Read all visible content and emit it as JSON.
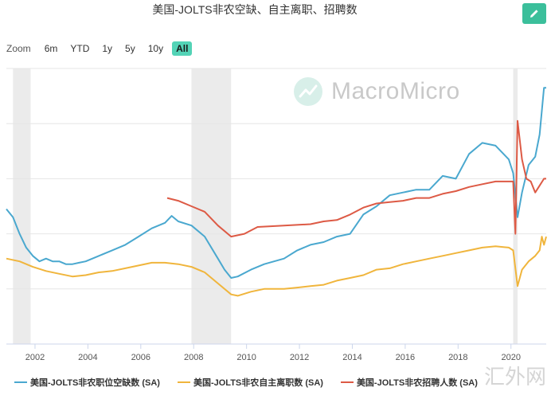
{
  "title": "美国-JOLTS非农空缺、自主离职、招聘数",
  "toolbar": {
    "zoom_label": "Zoom",
    "ranges": [
      "6m",
      "YTD",
      "1y",
      "5y",
      "10y",
      "All"
    ],
    "active": "All"
  },
  "watermark": {
    "brand": "MacroMicro",
    "icon": "chart-trend-icon",
    "corner": "汇外网"
  },
  "colors": {
    "openings": "#4aa8cf",
    "quits": "#f0b53c",
    "hires": "#dd5a45",
    "recession": "#ebebeb",
    "accent": "#3bbf9b"
  },
  "chart_data": {
    "type": "line",
    "title": "美国-JOLTS非农空缺、自主离职、招聘数",
    "x_axis": {
      "type": "datetime",
      "ticks": [
        "2002",
        "2004",
        "2006",
        "2008",
        "2010",
        "2012",
        "2014",
        "2016",
        "2018",
        "2020"
      ],
      "range": [
        "2000-12",
        "2021-05"
      ]
    },
    "y_axis": {
      "labels": "hidden",
      "grid": true
    },
    "recession_bands": [
      [
        "2001-03",
        "2001-11"
      ],
      [
        "2007-12",
        "2009-06"
      ],
      [
        "2020-02",
        "2020-04"
      ]
    ],
    "legend": "bottom",
    "series": [
      {
        "name": "美国-JOLTS非农职位空缺数 (SA)",
        "color": "#4aa8cf",
        "points": [
          [
            "2000-12",
            4.9
          ],
          [
            "2001-03",
            4.6
          ],
          [
            "2001-06",
            4.0
          ],
          [
            "2001-09",
            3.5
          ],
          [
            "2001-12",
            3.2
          ],
          [
            "2002-03",
            3.0
          ],
          [
            "2002-06",
            3.1
          ],
          [
            "2002-09",
            3.0
          ],
          [
            "2002-12",
            3.0
          ],
          [
            "2003-03",
            2.9
          ],
          [
            "2003-06",
            2.9
          ],
          [
            "2003-09",
            2.95
          ],
          [
            "2003-12",
            3.0
          ],
          [
            "2004-06",
            3.2
          ],
          [
            "2004-12",
            3.4
          ],
          [
            "2005-06",
            3.6
          ],
          [
            "2005-12",
            3.9
          ],
          [
            "2006-06",
            4.2
          ],
          [
            "2006-12",
            4.4
          ],
          [
            "2007-03",
            4.65
          ],
          [
            "2007-06",
            4.45
          ],
          [
            "2007-12",
            4.3
          ],
          [
            "2008-06",
            3.9
          ],
          [
            "2008-12",
            3.1
          ],
          [
            "2009-03",
            2.7
          ],
          [
            "2009-06",
            2.4
          ],
          [
            "2009-09",
            2.45
          ],
          [
            "2010-03",
            2.7
          ],
          [
            "2010-09",
            2.9
          ],
          [
            "2011-06",
            3.1
          ],
          [
            "2011-12",
            3.4
          ],
          [
            "2012-06",
            3.6
          ],
          [
            "2012-12",
            3.7
          ],
          [
            "2013-06",
            3.9
          ],
          [
            "2013-12",
            4.0
          ],
          [
            "2014-06",
            4.7
          ],
          [
            "2014-12",
            5.0
          ],
          [
            "2015-06",
            5.4
          ],
          [
            "2015-12",
            5.5
          ],
          [
            "2016-06",
            5.6
          ],
          [
            "2016-12",
            5.6
          ],
          [
            "2017-06",
            6.1
          ],
          [
            "2017-12",
            6.0
          ],
          [
            "2018-06",
            6.9
          ],
          [
            "2018-12",
            7.3
          ],
          [
            "2019-06",
            7.2
          ],
          [
            "2019-12",
            6.7
          ],
          [
            "2020-02",
            6.2
          ],
          [
            "2020-03",
            5.4
          ],
          [
            "2020-04",
            4.6
          ],
          [
            "2020-06",
            5.5
          ],
          [
            "2020-09",
            6.5
          ],
          [
            "2020-12",
            6.8
          ],
          [
            "2021-02",
            7.6
          ],
          [
            "2021-04",
            9.3
          ],
          [
            "2021-05",
            9.3
          ]
        ]
      },
      {
        "name": "美国-JOLTS非农自主离职数 (SA)",
        "color": "#f0b53c",
        "points": [
          [
            "2000-12",
            3.1
          ],
          [
            "2001-06",
            3.0
          ],
          [
            "2001-12",
            2.8
          ],
          [
            "2002-06",
            2.65
          ],
          [
            "2002-12",
            2.55
          ],
          [
            "2003-06",
            2.45
          ],
          [
            "2003-12",
            2.5
          ],
          [
            "2004-06",
            2.6
          ],
          [
            "2004-12",
            2.65
          ],
          [
            "2005-06",
            2.75
          ],
          [
            "2005-12",
            2.85
          ],
          [
            "2006-06",
            2.95
          ],
          [
            "2006-12",
            2.95
          ],
          [
            "2007-06",
            2.9
          ],
          [
            "2007-12",
            2.8
          ],
          [
            "2008-06",
            2.6
          ],
          [
            "2008-12",
            2.2
          ],
          [
            "2009-06",
            1.8
          ],
          [
            "2009-09",
            1.75
          ],
          [
            "2010-03",
            1.9
          ],
          [
            "2010-09",
            2.0
          ],
          [
            "2011-06",
            2.0
          ],
          [
            "2011-12",
            2.05
          ],
          [
            "2012-06",
            2.1
          ],
          [
            "2012-12",
            2.15
          ],
          [
            "2013-06",
            2.3
          ],
          [
            "2013-12",
            2.4
          ],
          [
            "2014-06",
            2.5
          ],
          [
            "2014-12",
            2.7
          ],
          [
            "2015-06",
            2.75
          ],
          [
            "2015-12",
            2.9
          ],
          [
            "2016-06",
            3.0
          ],
          [
            "2016-12",
            3.1
          ],
          [
            "2017-06",
            3.2
          ],
          [
            "2017-12",
            3.3
          ],
          [
            "2018-06",
            3.4
          ],
          [
            "2018-12",
            3.5
          ],
          [
            "2019-06",
            3.55
          ],
          [
            "2019-12",
            3.5
          ],
          [
            "2020-02",
            3.4
          ],
          [
            "2020-04",
            2.1
          ],
          [
            "2020-06",
            2.7
          ],
          [
            "2020-09",
            3.0
          ],
          [
            "2020-12",
            3.2
          ],
          [
            "2021-02",
            3.4
          ],
          [
            "2021-03",
            3.9
          ],
          [
            "2021-04",
            3.6
          ],
          [
            "2021-05",
            3.9
          ]
        ]
      },
      {
        "name": "美国-JOLTS非农招聘人数 (SA)",
        "color": "#dd5a45",
        "points": [
          [
            "2007-01",
            5.3
          ],
          [
            "2007-06",
            5.2
          ],
          [
            "2007-12",
            5.0
          ],
          [
            "2008-06",
            4.8
          ],
          [
            "2008-12",
            4.3
          ],
          [
            "2009-06",
            3.9
          ],
          [
            "2009-12",
            4.0
          ],
          [
            "2010-06",
            4.25
          ],
          [
            "2011-06",
            4.3
          ],
          [
            "2012-06",
            4.35
          ],
          [
            "2012-12",
            4.45
          ],
          [
            "2013-06",
            4.5
          ],
          [
            "2013-12",
            4.7
          ],
          [
            "2014-06",
            4.95
          ],
          [
            "2014-12",
            5.1
          ],
          [
            "2015-06",
            5.15
          ],
          [
            "2015-12",
            5.2
          ],
          [
            "2016-06",
            5.3
          ],
          [
            "2016-12",
            5.3
          ],
          [
            "2017-06",
            5.45
          ],
          [
            "2017-12",
            5.55
          ],
          [
            "2018-06",
            5.7
          ],
          [
            "2018-12",
            5.8
          ],
          [
            "2019-06",
            5.9
          ],
          [
            "2019-12",
            5.9
          ],
          [
            "2020-02",
            5.9
          ],
          [
            "2020-03",
            4.0
          ],
          [
            "2020-04",
            8.1
          ],
          [
            "2020-05",
            7.4
          ],
          [
            "2020-06",
            6.7
          ],
          [
            "2020-08",
            6.0
          ],
          [
            "2020-10",
            5.9
          ],
          [
            "2020-12",
            5.5
          ],
          [
            "2021-02",
            5.75
          ],
          [
            "2021-04",
            6.0
          ],
          [
            "2021-05",
            6.0
          ]
        ]
      }
    ]
  }
}
